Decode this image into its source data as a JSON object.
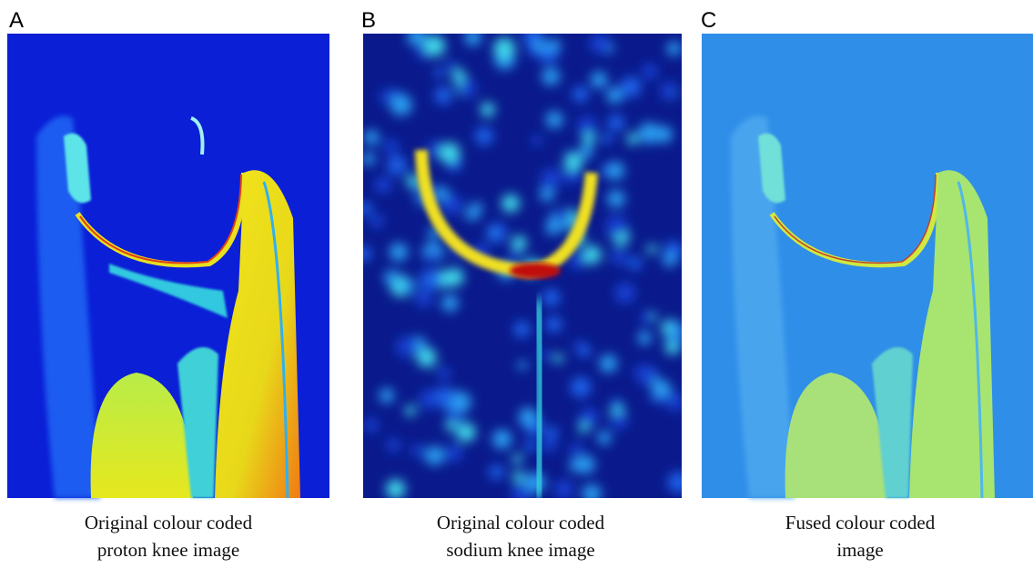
{
  "panels": [
    {
      "label": "A",
      "caption": [
        "Original colour coded",
        "proton knee image"
      ]
    },
    {
      "label": "B",
      "caption": [
        "Original colour coded",
        "sodium knee image"
      ]
    },
    {
      "label": "C",
      "caption": [
        "Fused colour coded",
        "image"
      ]
    }
  ]
}
